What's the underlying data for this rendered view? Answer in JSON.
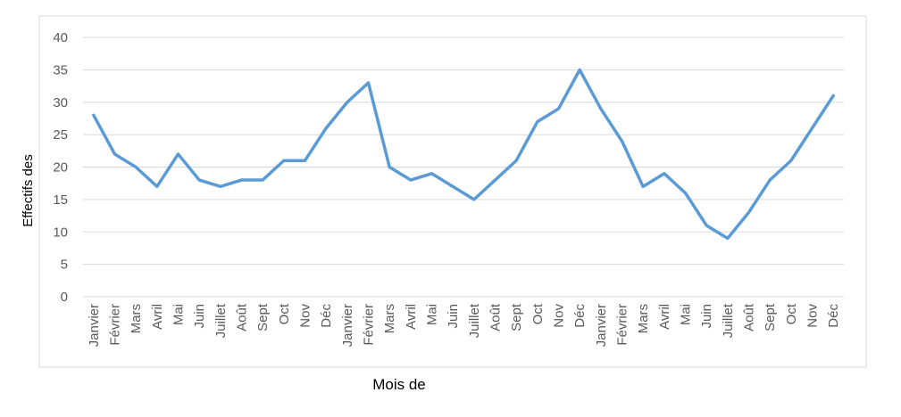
{
  "chart_data": {
    "type": "line",
    "x_label": "Mois de",
    "y_label": "Effectifs des",
    "categories": [
      "Janvier",
      "Février",
      "Mars",
      "Avril",
      "Mai",
      "Juin",
      "Juillet",
      "Août",
      "Sept",
      "Oct",
      "Nov",
      "Déc",
      "Janvier",
      "Février",
      "Mars",
      "Avril",
      "Mai",
      "Juin",
      "Juillet",
      "Août",
      "Sept",
      "Oct",
      "Nov",
      "Déc",
      "Janvier",
      "Février",
      "Mars",
      "Avril",
      "Mai",
      "Juin",
      "Juillet",
      "Août",
      "Sept",
      "Oct",
      "Nov",
      "Déc"
    ],
    "values": [
      28,
      22,
      20,
      17,
      22,
      18,
      17,
      18,
      18,
      21,
      21,
      26,
      30,
      33,
      20,
      18,
      19,
      17,
      15,
      18,
      21,
      27,
      29,
      35,
      29,
      24,
      17,
      19,
      16,
      11,
      9,
      13,
      18,
      21,
      26,
      31
    ],
    "color": "#5b9bd5",
    "ylim": [
      0,
      40
    ],
    "yticks": [
      0,
      5,
      10,
      15,
      20,
      25,
      30,
      35,
      40
    ],
    "grid": true
  }
}
